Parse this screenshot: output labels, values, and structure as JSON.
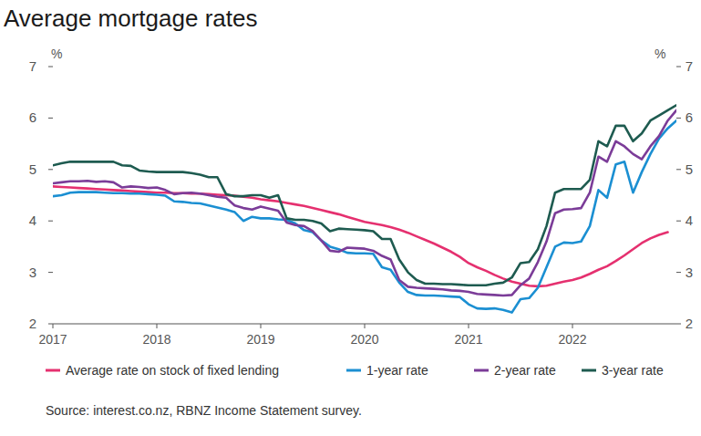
{
  "chart_data": {
    "type": "line",
    "title": "Average mortgage rates",
    "ylabel": "%",
    "source": "Source: interest.co.nz, RBNZ Income Statement survey.",
    "x": [
      2017,
      2017.083,
      2017.167,
      2017.25,
      2017.333,
      2017.417,
      2017.5,
      2017.583,
      2017.667,
      2017.75,
      2017.833,
      2017.917,
      2018,
      2018.083,
      2018.167,
      2018.25,
      2018.333,
      2018.417,
      2018.5,
      2018.583,
      2018.667,
      2018.75,
      2018.833,
      2018.917,
      2019,
      2019.083,
      2019.167,
      2019.25,
      2019.333,
      2019.417,
      2019.5,
      2019.583,
      2019.667,
      2019.75,
      2019.833,
      2019.917,
      2020,
      2020.083,
      2020.167,
      2020.25,
      2020.333,
      2020.417,
      2020.5,
      2020.583,
      2020.667,
      2020.75,
      2020.833,
      2020.917,
      2021,
      2021.083,
      2021.167,
      2021.25,
      2021.333,
      2021.417,
      2021.5,
      2021.583,
      2021.667,
      2021.75,
      2021.833,
      2021.917,
      2022,
      2022.083,
      2022.167,
      2022.25,
      2022.333,
      2022.417,
      2022.5,
      2022.583,
      2022.667,
      2022.75,
      2022.833,
      2022.917,
      2023
    ],
    "xlim": [
      2017,
      2023
    ],
    "xticks": [
      2017,
      2018,
      2019,
      2020,
      2021,
      2022
    ],
    "ylim": [
      2,
      7
    ],
    "yticks": [
      2,
      3,
      4,
      5,
      6,
      7
    ],
    "grid": false,
    "legend": "bottom",
    "series": [
      {
        "name": "Average rate on stock of fixed lending",
        "color": "#e5306f",
        "values": [
          4.67,
          4.66,
          4.65,
          4.64,
          4.63,
          4.62,
          4.61,
          4.6,
          4.59,
          4.58,
          4.57,
          4.56,
          4.55,
          4.55,
          4.54,
          4.54,
          4.53,
          4.53,
          4.52,
          4.51,
          4.5,
          4.49,
          4.47,
          4.45,
          4.42,
          4.4,
          4.38,
          4.35,
          4.32,
          4.29,
          4.25,
          4.21,
          4.17,
          4.13,
          4.08,
          4.03,
          3.98,
          3.95,
          3.92,
          3.88,
          3.83,
          3.77,
          3.7,
          3.63,
          3.56,
          3.48,
          3.4,
          3.3,
          3.18,
          3.1,
          3.03,
          2.95,
          2.88,
          2.82,
          2.78,
          2.74,
          2.73,
          2.74,
          2.78,
          2.82,
          2.85,
          2.9,
          2.97,
          3.05,
          3.12,
          3.22,
          3.33,
          3.45,
          3.57,
          3.66,
          3.73,
          3.78,
          null
        ]
      },
      {
        "name": "1-year rate",
        "color": "#1b8fd2",
        "values": [
          4.48,
          4.5,
          4.55,
          4.56,
          4.56,
          4.56,
          4.55,
          4.54,
          4.54,
          4.53,
          4.53,
          4.52,
          4.51,
          4.49,
          4.38,
          4.37,
          4.35,
          4.34,
          4.3,
          4.26,
          4.22,
          4.17,
          4.0,
          4.08,
          4.05,
          4.05,
          4.03,
          4.02,
          3.95,
          3.82,
          3.78,
          3.62,
          3.5,
          3.45,
          3.38,
          3.37,
          3.37,
          3.36,
          3.1,
          3.05,
          2.8,
          2.62,
          2.56,
          2.55,
          2.55,
          2.54,
          2.53,
          2.52,
          2.38,
          2.3,
          2.29,
          2.3,
          2.27,
          2.22,
          2.48,
          2.5,
          2.7,
          3.1,
          3.5,
          3.58,
          3.57,
          3.6,
          3.9,
          4.6,
          4.45,
          5.1,
          5.15,
          4.55,
          4.95,
          5.3,
          5.6,
          5.8,
          5.95
        ]
      },
      {
        "name": "2-year rate",
        "color": "#7b3c98",
        "values": [
          4.73,
          4.75,
          4.77,
          4.77,
          4.78,
          4.76,
          4.77,
          4.75,
          4.65,
          4.67,
          4.66,
          4.64,
          4.65,
          4.6,
          4.52,
          4.54,
          4.55,
          4.53,
          4.5,
          4.47,
          4.45,
          4.3,
          4.25,
          4.22,
          4.28,
          4.24,
          4.2,
          3.97,
          3.92,
          3.9,
          3.8,
          3.62,
          3.42,
          3.4,
          3.48,
          3.47,
          3.46,
          3.42,
          3.32,
          3.25,
          2.85,
          2.72,
          2.7,
          2.69,
          2.68,
          2.67,
          2.65,
          2.64,
          2.62,
          2.58,
          2.57,
          2.56,
          2.55,
          2.56,
          2.75,
          2.88,
          3.2,
          3.6,
          4.15,
          4.22,
          4.23,
          4.25,
          4.55,
          5.25,
          5.15,
          5.55,
          5.45,
          5.3,
          5.2,
          5.45,
          5.65,
          5.95,
          6.15
        ]
      },
      {
        "name": "3-year rate",
        "color": "#1e5b50",
        "values": [
          5.08,
          5.12,
          5.15,
          5.15,
          5.15,
          5.15,
          5.15,
          5.15,
          5.08,
          5.07,
          4.98,
          4.96,
          4.95,
          4.95,
          4.95,
          4.95,
          4.93,
          4.9,
          4.85,
          4.85,
          4.52,
          4.48,
          4.48,
          4.5,
          4.5,
          4.45,
          4.5,
          4.05,
          4.02,
          4.02,
          4.0,
          3.95,
          3.8,
          3.85,
          3.84,
          3.83,
          3.82,
          3.8,
          3.65,
          3.65,
          3.25,
          3.0,
          2.85,
          2.78,
          2.78,
          2.77,
          2.77,
          2.76,
          2.75,
          2.75,
          2.75,
          2.78,
          2.8,
          2.9,
          3.18,
          3.2,
          3.45,
          3.9,
          4.55,
          4.62,
          4.62,
          4.62,
          4.8,
          5.55,
          5.45,
          5.85,
          5.85,
          5.55,
          5.7,
          5.95,
          6.05,
          6.15,
          6.25
        ]
      }
    ]
  }
}
